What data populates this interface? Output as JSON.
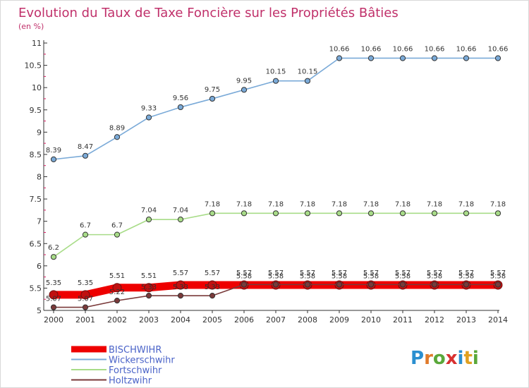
{
  "chart_data": {
    "type": "line",
    "title": "Evolution du Taux de Taxe Foncière sur les Propriétés Bâties",
    "subtitle": "(en %)",
    "x": [
      2000,
      2001,
      2002,
      2003,
      2004,
      2005,
      2006,
      2007,
      2008,
      2009,
      2010,
      2011,
      2012,
      2013,
      2014
    ],
    "ylim": [
      5,
      11
    ],
    "yticks": [
      5,
      5.5,
      6,
      6.5,
      7,
      7.5,
      8,
      8.5,
      9,
      9.5,
      10,
      10.5,
      11
    ],
    "ytick_labels": [
      "5",
      "5.5",
      "6",
      "6.5",
      "7",
      "7.5",
      "8",
      "8.5",
      "9",
      "9.5",
      "10",
      "10.5",
      "11"
    ],
    "grid": false,
    "legend_position": "bottom-left",
    "series": [
      {
        "name": "BISCHWIHR",
        "color": "#ee0000",
        "values": [
          5.35,
          5.35,
          5.51,
          5.51,
          5.57,
          5.57,
          5.57,
          5.57,
          5.57,
          5.57,
          5.57,
          5.57,
          5.57,
          5.57,
          5.57
        ],
        "labels": [
          "5.35",
          "5.35",
          "5.51",
          "5.51",
          "5.57",
          "5.57",
          "5.57",
          "5.57",
          "5.57",
          "5.57",
          "5.57",
          "5.57",
          "5.57",
          "5.57",
          "5.57"
        ]
      },
      {
        "name": "Wickerschwihr",
        "color": "#7aaad8",
        "values": [
          8.39,
          8.47,
          8.89,
          9.33,
          9.56,
          9.75,
          9.95,
          10.15,
          10.15,
          10.66,
          10.66,
          10.66,
          10.66,
          10.66,
          10.66
        ],
        "labels": [
          "8.39",
          "8.47",
          "8.89",
          "9.33",
          "9.56",
          "9.75",
          "9.95",
          "10.15",
          "10.15",
          "10.66",
          "10.66",
          "10.66",
          "10.66",
          "10.66",
          "10.66"
        ]
      },
      {
        "name": "Fortschwihr",
        "color": "#a8dc88",
        "values": [
          6.2,
          6.7,
          6.7,
          7.04,
          7.04,
          7.18,
          7.18,
          7.18,
          7.18,
          7.18,
          7.18,
          7.18,
          7.18,
          7.18,
          7.18
        ],
        "labels": [
          "6.2",
          "6.7",
          "6.7",
          "7.04",
          "7.04",
          "7.18",
          "7.18",
          "7.18",
          "7.18",
          "7.18",
          "7.18",
          "7.18",
          "7.18",
          "7.18",
          "7.18"
        ]
      },
      {
        "name": "Holtzwihr",
        "color": "#7a3a3a",
        "values": [
          5.07,
          5.07,
          5.22,
          5.33,
          5.33,
          5.33,
          5.58,
          5.58,
          5.58,
          5.58,
          5.58,
          5.58,
          5.58,
          5.58,
          5.58
        ],
        "labels": [
          "5.07",
          "5.07",
          "5.22",
          "5.33",
          "5.33",
          "5.33",
          "5.58",
          "5.58",
          "5.58",
          "5.58",
          "5.58",
          "5.58",
          "5.58",
          "5.58",
          "5.58"
        ]
      }
    ]
  },
  "logo": {
    "letters": [
      "P",
      "r",
      "o",
      "x",
      "i",
      "t",
      "i"
    ],
    "colors": [
      "#2a8fd0",
      "#e07a2a",
      "#5aa83a",
      "#d83030",
      "#2a8fd0",
      "#e0a020",
      "#5aa83a"
    ]
  }
}
